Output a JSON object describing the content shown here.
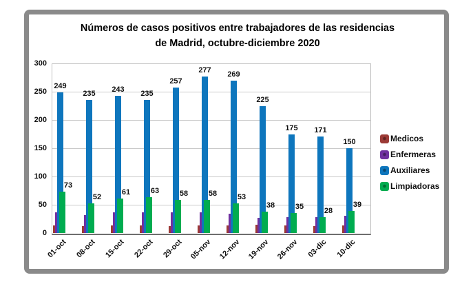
{
  "chart_data": {
    "type": "bar",
    "title": "Números de casos positivos entre trabajadores de las residencias de Madrid, octubre-diciembre 2020",
    "categories": [
      "01-oct",
      "08-oct",
      "15-oct",
      "22-oct",
      "29-oct",
      "05-nov",
      "12-nov",
      "19-nov",
      "26-nov",
      "03-dic",
      "10-dic"
    ],
    "series": [
      {
        "name": "Medicos",
        "color": "#9c3a36",
        "labels_shown": false,
        "estimated": true,
        "values": [
          13,
          12,
          13,
          13,
          12,
          14,
          13,
          15,
          13,
          12,
          13
        ]
      },
      {
        "name": "Enfermeras",
        "color": "#7030a0",
        "labels_shown": false,
        "estimated": true,
        "values": [
          37,
          32,
          36,
          37,
          36,
          37,
          34,
          27,
          28,
          28,
          30
        ]
      },
      {
        "name": "Auxiliares",
        "color": "#0e76bd",
        "labels_shown": true,
        "values": [
          249,
          235,
          243,
          235,
          257,
          277,
          269,
          225,
          175,
          171,
          150
        ]
      },
      {
        "name": "Limpiadoras",
        "color": "#00ac50",
        "labels_shown": true,
        "values": [
          73,
          52,
          61,
          63,
          58,
          58,
          53,
          38,
          35,
          28,
          39
        ]
      }
    ],
    "ylim": [
      0,
      300
    ],
    "ytick_step": 50,
    "yticks": [
      0,
      50,
      100,
      150,
      200,
      250,
      300
    ],
    "grid": true,
    "legend_position": "right",
    "xlabel": "",
    "ylabel": ""
  },
  "legend": {
    "items": [
      "Medicos",
      "Enfermeras",
      "Auxiliares",
      "Limpiadoras"
    ]
  },
  "colors": {
    "frame_border": "#8a8a8a",
    "gridline": "#c9c9c9",
    "plot_border": "#bfbfbf",
    "axis_line": "#6e6e6e",
    "text": "#111111"
  }
}
